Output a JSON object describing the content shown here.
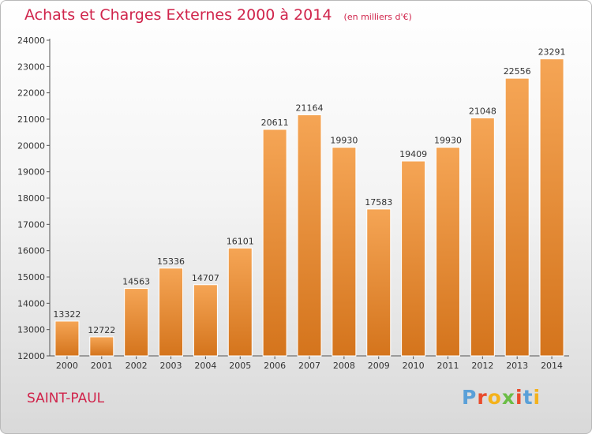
{
  "header": {
    "title": "Achats et Charges Externes 2000 à 2014",
    "unit": "(en milliers d'€)"
  },
  "footer": {
    "commune": "SAINT-PAUL",
    "brand": "Proxiti"
  },
  "colors": {
    "title": "#d0244b",
    "bar_top": "#f5a555",
    "bar_bottom": "#d4741c",
    "brand_letters": [
      "#5aa0d8",
      "#e94b2c",
      "#f4b21b",
      "#6bbd45",
      "#e94b2c",
      "#5aa0d8",
      "#f4b21b"
    ]
  },
  "chart_data": {
    "type": "bar",
    "title": "Achats et Charges Externes 2000 à 2014",
    "subtitle": "(en milliers d'€)",
    "xlabel": "",
    "ylabel": "",
    "categories": [
      "2000",
      "2001",
      "2002",
      "2003",
      "2004",
      "2005",
      "2006",
      "2007",
      "2008",
      "2009",
      "2010",
      "2011",
      "2012",
      "2013",
      "2014"
    ],
    "values": [
      13322,
      12722,
      14563,
      15336,
      14707,
      16101,
      20611,
      21164,
      19930,
      17583,
      19409,
      19930,
      21048,
      22556,
      23291
    ],
    "value_labels": [
      "13322",
      "12722",
      "14563",
      "15336",
      "14707",
      "16101",
      "20611",
      "21164",
      "19930",
      "17583",
      "19409",
      "19930",
      "21048",
      "22556",
      "23291"
    ],
    "ylim": [
      12000,
      24000
    ],
    "yticks": [
      "12000",
      "13000",
      "14000",
      "15000",
      "16000",
      "17000",
      "18000",
      "19000",
      "20000",
      "21000",
      "22000",
      "23000",
      "24000"
    ],
    "grid": false,
    "legend": "none"
  }
}
